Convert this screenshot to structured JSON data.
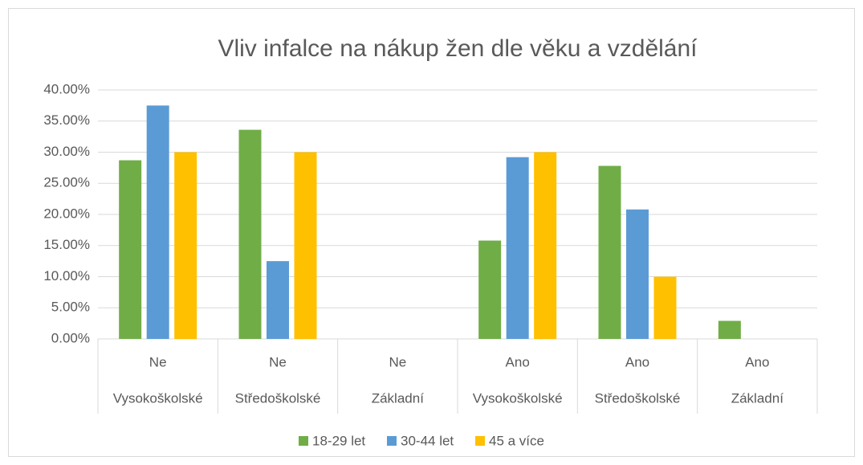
{
  "chart_data": {
    "type": "bar",
    "title": "Vliv infalce na nákup žen dle věku a vzdělání",
    "category_groups": [
      "Ne",
      "Ne",
      "Ne",
      "Ano",
      "Ano",
      "Ano"
    ],
    "categories": [
      "Vysokoškolské",
      "Středoškolské",
      "Základní",
      "Vysokoškolské",
      "Středoškolské",
      "Základní"
    ],
    "series": [
      {
        "name": "18-29 let",
        "color": "#70ad47",
        "values": [
          28.7,
          33.6,
          0,
          15.8,
          27.8,
          2.9
        ]
      },
      {
        "name": "30-44 let",
        "color": "#5b9bd5",
        "values": [
          37.5,
          12.5,
          0,
          29.2,
          20.8,
          0
        ]
      },
      {
        "name": "45 a více",
        "color": "#ffc000",
        "values": [
          30,
          30,
          0,
          30,
          10,
          0
        ]
      }
    ],
    "ylim": [
      0,
      40
    ],
    "yticks": [
      {
        "value": 0,
        "label": "0.00%"
      },
      {
        "value": 5,
        "label": "5.00%"
      },
      {
        "value": 10,
        "label": "10.00%"
      },
      {
        "value": 15,
        "label": "15.00%"
      },
      {
        "value": 20,
        "label": "20.00%"
      },
      {
        "value": 25,
        "label": "25.00%"
      },
      {
        "value": 30,
        "label": "30.00%"
      },
      {
        "value": 35,
        "label": "35.00%"
      },
      {
        "value": 40,
        "label": "40.00%"
      }
    ],
    "grid": true,
    "legend": "bottom"
  }
}
